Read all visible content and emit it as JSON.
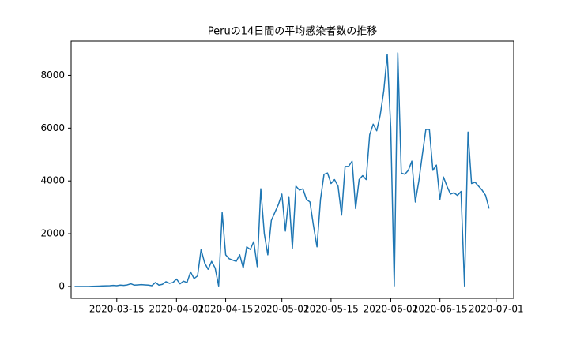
{
  "chart_data": {
    "type": "line",
    "title": "Peruの14日間の平均感染者数の推移",
    "x": [
      "2020-03-03",
      "2020-03-04",
      "2020-03-05",
      "2020-03-06",
      "2020-03-07",
      "2020-03-08",
      "2020-03-09",
      "2020-03-10",
      "2020-03-11",
      "2020-03-12",
      "2020-03-13",
      "2020-03-14",
      "2020-03-15",
      "2020-03-16",
      "2020-03-17",
      "2020-03-18",
      "2020-03-19",
      "2020-03-20",
      "2020-03-21",
      "2020-03-22",
      "2020-03-23",
      "2020-03-24",
      "2020-03-25",
      "2020-03-26",
      "2020-03-27",
      "2020-03-28",
      "2020-03-29",
      "2020-03-30",
      "2020-03-31",
      "2020-04-01",
      "2020-04-02",
      "2020-04-03",
      "2020-04-04",
      "2020-04-05",
      "2020-04-06",
      "2020-04-07",
      "2020-04-08",
      "2020-04-09",
      "2020-04-10",
      "2020-04-11",
      "2020-04-12",
      "2020-04-13",
      "2020-04-14",
      "2020-04-15",
      "2020-04-16",
      "2020-04-17",
      "2020-04-18",
      "2020-04-19",
      "2020-04-20",
      "2020-04-21",
      "2020-04-22",
      "2020-04-23",
      "2020-04-24",
      "2020-04-25",
      "2020-04-26",
      "2020-04-27",
      "2020-04-28",
      "2020-04-29",
      "2020-04-30",
      "2020-05-01",
      "2020-05-02",
      "2020-05-03",
      "2020-05-04",
      "2020-05-05",
      "2020-05-06",
      "2020-05-07",
      "2020-05-08",
      "2020-05-09",
      "2020-05-10",
      "2020-05-11",
      "2020-05-12",
      "2020-05-13",
      "2020-05-14",
      "2020-05-15",
      "2020-05-16",
      "2020-05-17",
      "2020-05-18",
      "2020-05-19",
      "2020-05-20",
      "2020-05-21",
      "2020-05-22",
      "2020-05-23",
      "2020-05-24",
      "2020-05-25",
      "2020-05-26",
      "2020-05-27",
      "2020-05-28",
      "2020-05-29",
      "2020-05-30",
      "2020-05-31",
      "2020-06-01",
      "2020-06-02",
      "2020-06-03",
      "2020-06-04",
      "2020-06-05",
      "2020-06-06",
      "2020-06-07",
      "2020-06-08",
      "2020-06-09",
      "2020-06-10",
      "2020-06-11",
      "2020-06-12",
      "2020-06-13",
      "2020-06-14",
      "2020-06-15",
      "2020-06-16",
      "2020-06-17",
      "2020-06-18",
      "2020-06-19",
      "2020-06-20",
      "2020-06-21",
      "2020-06-22",
      "2020-06-23",
      "2020-06-24",
      "2020-06-25",
      "2020-06-26",
      "2020-06-27",
      "2020-06-28",
      "2020-06-29"
    ],
    "series": [
      {
        "color": "#1f77b4",
        "values": [
          0,
          0,
          0,
          0,
          0,
          5,
          10,
          15,
          20,
          25,
          30,
          40,
          30,
          50,
          40,
          60,
          100,
          50,
          60,
          70,
          60,
          50,
          30,
          150,
          50,
          80,
          180,
          120,
          150,
          280,
          100,
          200,
          150,
          550,
          300,
          400,
          1400,
          900,
          650,
          950,
          700,
          20,
          2800,
          1200,
          1050,
          1000,
          950,
          1200,
          700,
          1500,
          1400,
          1700,
          750,
          3700,
          2000,
          1200,
          2500,
          2800,
          3100,
          3500,
          2100,
          3400,
          1450,
          3800,
          3650,
          3700,
          3300,
          3200,
          2300,
          1500,
          3300,
          4250,
          4300,
          3900,
          4050,
          3800,
          2700,
          4550,
          4550,
          4750,
          2950,
          4050,
          4200,
          4050,
          5750,
          6150,
          5900,
          6500,
          7400,
          8800,
          6000,
          20,
          8850,
          4300,
          4250,
          4400,
          4750,
          3200,
          4000,
          5000,
          5950,
          5950,
          4400,
          4600,
          3300,
          4150,
          3800,
          3500,
          3550,
          3450,
          3600,
          20,
          5850,
          3900,
          3950,
          3800,
          3650,
          3450,
          2950
        ]
      }
    ],
    "xlim": [
      "2020-03-02",
      "2020-07-06"
    ],
    "xticks": [
      "2020-03-15",
      "2020-04-01",
      "2020-04-15",
      "2020-05-01",
      "2020-05-15",
      "2020-06-01",
      "2020-06-15",
      "2020-07-01"
    ],
    "ylim": [
      -450,
      9300
    ],
    "yticks": [
      0,
      2000,
      4000,
      6000,
      8000
    ],
    "grid": false
  }
}
